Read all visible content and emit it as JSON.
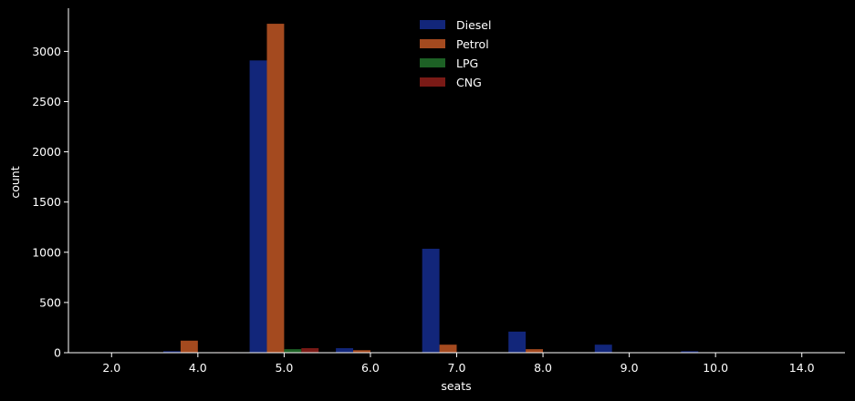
{
  "chart_data": {
    "type": "bar",
    "xlabel": "seats",
    "ylabel": "count",
    "categories": [
      "2.0",
      "4.0",
      "5.0",
      "6.0",
      "7.0",
      "8.0",
      "9.0",
      "10.0",
      "14.0"
    ],
    "series": [
      {
        "name": "Diesel",
        "color": "#12267a",
        "values": [
          0,
          15,
          2910,
          45,
          1035,
          210,
          80,
          15,
          0
        ]
      },
      {
        "name": "Petrol",
        "color": "#a44a1f",
        "values": [
          0,
          120,
          3275,
          25,
          80,
          35,
          0,
          0,
          0
        ]
      },
      {
        "name": "LPG",
        "color": "#1d6125",
        "values": [
          0,
          0,
          35,
          0,
          0,
          0,
          0,
          0,
          0
        ]
      },
      {
        "name": "CNG",
        "color": "#7a1a16",
        "values": [
          0,
          5,
          45,
          0,
          0,
          0,
          0,
          0,
          0
        ]
      }
    ],
    "ylim": [
      0,
      3430
    ],
    "yticks": [
      0,
      500,
      1000,
      1500,
      2000,
      2500,
      3000
    ],
    "ytick_labels": [
      "0",
      "500",
      "1000",
      "1500",
      "2000",
      "2500",
      "3000"
    ],
    "legend_position": "top-center",
    "grid": false
  }
}
